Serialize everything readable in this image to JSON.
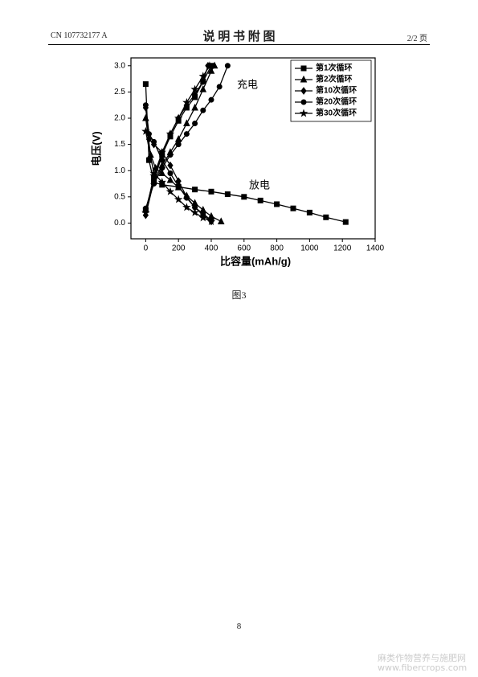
{
  "header": {
    "code": "CN 107732177 A",
    "title": "说 明 书 附 图",
    "page": "2/2 页"
  },
  "chart_data": {
    "type": "line",
    "y_label": "电压(V)",
    "x_label": "比容量(mAh/g)",
    "annotations": [
      "充电",
      "放电"
    ],
    "xlim": [
      -90,
      1400
    ],
    "ylim": [
      -0.3,
      3.15
    ],
    "xticks": [
      0,
      200,
      400,
      600,
      800,
      1000,
      1200,
      1400
    ],
    "yticks": [
      {
        "value": 0,
        "label": "0.0"
      },
      0.5,
      {
        "value": 1,
        "label": "1.0"
      },
      1.5,
      {
        "value": 2,
        "label": "2.0"
      },
      2.5,
      {
        "value": 3,
        "label": "3.0"
      }
    ],
    "legend": "upper right",
    "series": [
      {
        "name": "第1次循环",
        "color": "#000000",
        "marker": "square",
        "x": [
          0,
          20,
          50,
          100,
          200,
          300,
          400,
          500,
          600,
          700,
          800,
          900,
          1000,
          1100,
          1220,
          null,
          0,
          50,
          100,
          150,
          200,
          250,
          300,
          350,
          400
        ],
        "values": [
          2.65,
          1.2,
          0.78,
          0.73,
          0.69,
          0.64,
          0.6,
          0.55,
          0.5,
          0.43,
          0.36,
          0.28,
          0.2,
          0.11,
          0.02,
          null,
          0.25,
          0.85,
          1.3,
          1.65,
          1.95,
          2.2,
          2.4,
          2.7,
          3.0
        ]
      },
      {
        "name": "第2次循环",
        "color": "#000000",
        "marker": "triangle",
        "x": [
          0,
          30,
          60,
          100,
          150,
          200,
          250,
          300,
          350,
          400,
          460,
          null,
          0,
          50,
          100,
          150,
          200,
          250,
          300,
          350,
          400,
          420
        ],
        "values": [
          2.0,
          1.3,
          1.05,
          0.95,
          0.82,
          0.68,
          0.52,
          0.38,
          0.25,
          0.13,
          0.03,
          null,
          0.25,
          0.8,
          1.1,
          1.35,
          1.6,
          1.9,
          2.2,
          2.55,
          2.9,
          3.0
        ]
      },
      {
        "name": "第10次循环",
        "color": "#000000",
        "marker": "diamond",
        "x": [
          0,
          20,
          50,
          100,
          150,
          200,
          250,
          300,
          350,
          400,
          null,
          0,
          50,
          100,
          150,
          200,
          250,
          300,
          350,
          380
        ],
        "values": [
          2.2,
          1.6,
          1.5,
          1.35,
          1.1,
          0.8,
          0.5,
          0.3,
          0.15,
          0.03,
          null,
          0.15,
          0.8,
          1.3,
          1.7,
          2.0,
          2.25,
          2.45,
          2.7,
          3.0
        ]
      },
      {
        "name": "第20次循环",
        "color": "#000000",
        "marker": "circle",
        "x": [
          0,
          20,
          50,
          100,
          150,
          200,
          250,
          300,
          350,
          400,
          null,
          0,
          50,
          100,
          150,
          200,
          250,
          300,
          350,
          400,
          450,
          500
        ],
        "values": [
          2.25,
          1.7,
          1.55,
          1.2,
          0.95,
          0.7,
          0.48,
          0.3,
          0.18,
          0.05,
          null,
          0.28,
          0.75,
          1.05,
          1.3,
          1.5,
          1.7,
          1.9,
          2.15,
          2.35,
          2.6,
          3.0
        ]
      },
      {
        "name": "第30次循环",
        "color": "#000000",
        "marker": "star",
        "x": [
          0,
          50,
          100,
          150,
          200,
          250,
          300,
          350,
          400,
          null,
          0,
          50,
          100,
          150,
          200,
          250,
          300,
          350,
          390
        ],
        "values": [
          1.75,
          0.95,
          0.78,
          0.6,
          0.45,
          0.3,
          0.2,
          0.1,
          0.03,
          null,
          0.2,
          0.9,
          1.35,
          1.7,
          2.0,
          2.3,
          2.55,
          2.8,
          3.0
        ]
      }
    ]
  },
  "caption": "图3",
  "page_number": "8",
  "watermark": [
    "麻类作物营养与施肥网",
    "www.fibercrops.com"
  ]
}
